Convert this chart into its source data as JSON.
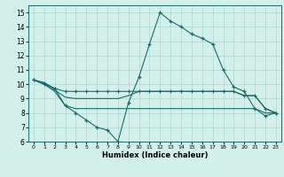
{
  "xlabel": "Humidex (Indice chaleur)",
  "xlim": [
    -0.5,
    23.5
  ],
  "ylim": [
    6,
    15.5
  ],
  "yticks": [
    6,
    7,
    8,
    9,
    10,
    11,
    12,
    13,
    14,
    15
  ],
  "xticks": [
    0,
    1,
    2,
    3,
    4,
    5,
    6,
    7,
    8,
    9,
    10,
    11,
    12,
    13,
    14,
    15,
    16,
    17,
    18,
    19,
    20,
    21,
    22,
    23
  ],
  "bg_color": "#d4f0ea",
  "grid_color": "#aad8d0",
  "line_color": "#1a6b6b",
  "line1_y": [
    10.3,
    10.0,
    9.7,
    8.5,
    8.0,
    7.5,
    7.0,
    6.8,
    6.0,
    8.7,
    10.5,
    12.8,
    15.0,
    14.4,
    14.0,
    13.5,
    13.2,
    12.8,
    11.0,
    9.8,
    9.5,
    8.3,
    7.8,
    8.0
  ],
  "line2_y": [
    10.3,
    10.1,
    9.7,
    9.5,
    9.5,
    9.5,
    9.5,
    9.5,
    9.5,
    9.5,
    9.5,
    9.5,
    9.5,
    9.5,
    9.5,
    9.5,
    9.5,
    9.5,
    9.5,
    9.5,
    9.2,
    9.2,
    8.3,
    8.0
  ],
  "line3_y": [
    10.3,
    10.1,
    9.6,
    9.1,
    9.0,
    9.0,
    9.0,
    9.0,
    9.0,
    9.2,
    9.5,
    9.5,
    9.5,
    9.5,
    9.5,
    9.5,
    9.5,
    9.5,
    9.5,
    9.5,
    9.2,
    9.2,
    8.3,
    8.0
  ],
  "line4_y": [
    10.3,
    10.0,
    9.5,
    8.5,
    8.3,
    8.3,
    8.3,
    8.3,
    8.3,
    8.3,
    8.3,
    8.3,
    8.3,
    8.3,
    8.3,
    8.3,
    8.3,
    8.3,
    8.3,
    8.3,
    8.3,
    8.3,
    8.0,
    8.0
  ]
}
